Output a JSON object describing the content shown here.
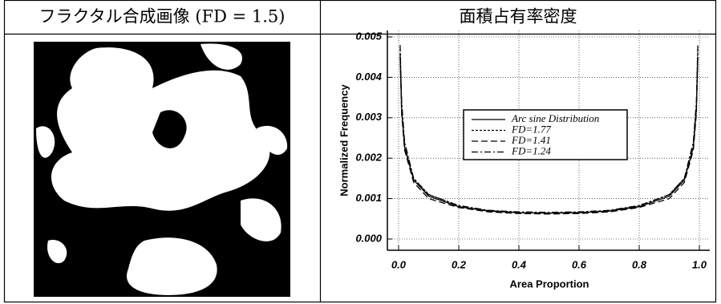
{
  "table": {
    "headers": [
      "フラクタル合成画像 (FD = 1.5)",
      "面積占有率密度"
    ]
  },
  "chart_data": {
    "type": "line",
    "xlabel": "Area Proportion",
    "ylabel": "Normalized Frequency",
    "x": [
      0.005,
      0.01,
      0.02,
      0.05,
      0.1,
      0.2,
      0.3,
      0.4,
      0.5,
      0.6,
      0.7,
      0.8,
      0.9,
      0.95,
      0.98,
      0.99,
      0.995
    ],
    "series": [
      {
        "name": "Arc sine Distribution",
        "color": "#000",
        "style": "solid",
        "values": [
          0.0045,
          0.0032,
          0.00227,
          0.00146,
          0.00106,
          0.0008,
          0.00069,
          0.00065,
          0.00064,
          0.00065,
          0.00069,
          0.0008,
          0.00106,
          0.00146,
          0.00227,
          0.0032,
          0.0045
        ]
      },
      {
        "name": "FD=1.77",
        "color": "#000",
        "style": "dotted",
        "values": [
          0.0047,
          0.0033,
          0.0023,
          0.0015,
          0.0011,
          0.00082,
          0.0007,
          0.00066,
          0.00064,
          0.00066,
          0.0007,
          0.00082,
          0.0011,
          0.0015,
          0.0023,
          0.0033,
          0.0047
        ]
      },
      {
        "name": "FD=1.41",
        "color": "#000",
        "style": "dashed",
        "values": [
          0.0046,
          0.0031,
          0.0022,
          0.0014,
          0.001,
          0.00078,
          0.00067,
          0.00063,
          0.00062,
          0.00063,
          0.00067,
          0.00078,
          0.001,
          0.0014,
          0.0022,
          0.0031,
          0.0046
        ]
      },
      {
        "name": "FD=1.24",
        "color": "#000",
        "style": "dashdot",
        "values": [
          0.0048,
          0.0034,
          0.0024,
          0.0015,
          0.0011,
          0.00083,
          0.00071,
          0.00067,
          0.00066,
          0.00067,
          0.00071,
          0.00083,
          0.0011,
          0.0015,
          0.0024,
          0.0034,
          0.0048
        ]
      }
    ],
    "xlim": [
      0,
      1
    ],
    "xticks": [
      {
        "value": 0,
        "label": "0.0"
      },
      0.2,
      0.4,
      0.6,
      0.8,
      {
        "value": 1,
        "label": "1.0"
      }
    ],
    "ylim": [
      0,
      0.005
    ],
    "yticks": [
      {
        "value": 0,
        "label": "0.000"
      },
      {
        "value": 0.001,
        "label": "0.001"
      },
      {
        "value": 0.002,
        "label": "0.002"
      },
      {
        "value": 0.003,
        "label": "0.003"
      },
      {
        "value": 0.004,
        "label": "0.004"
      },
      {
        "value": 0.005,
        "label": "0.005"
      }
    ],
    "grid": true,
    "legend": "upper center"
  }
}
